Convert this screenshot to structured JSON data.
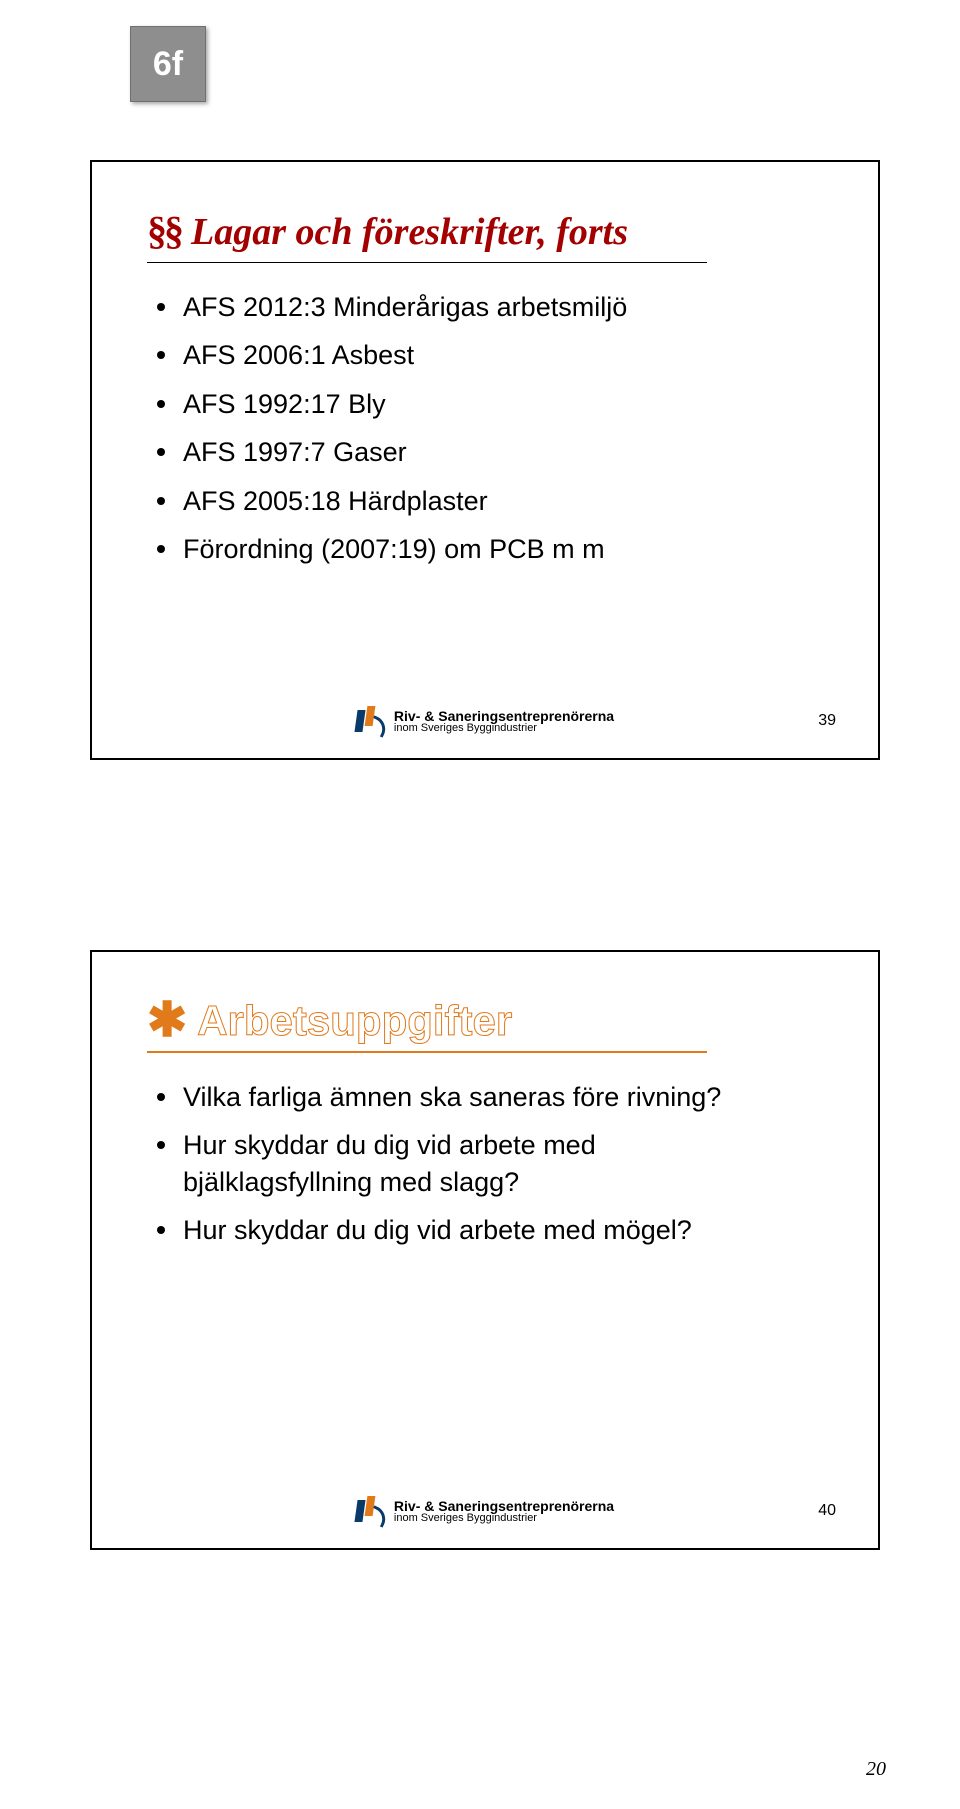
{
  "tab_badge": "6f",
  "colors": {
    "badge_bg": "#8e8e8e",
    "title1_color": "#a30000",
    "title2_stroke": "#e07a1b",
    "asterisk_color": "#e07a1b",
    "hr2_color": "#e07a1b",
    "logo_triangle": "#e07a1b",
    "logo_blue": "#0a3a6a",
    "text_color": "#000000",
    "page_bg": "#ffffff"
  },
  "slide1": {
    "prefix": "§§",
    "title": "Lagar och föreskrifter, forts",
    "bullets": [
      "AFS 2012:3 Minderårigas arbetsmiljö",
      "AFS 2006:1 Asbest",
      "AFS 1992:17 Bly",
      "AFS 1997:7 Gaser",
      "AFS 2005:18 Härdplaster",
      "Förordning (2007:19) om PCB m m"
    ],
    "logo_line1": "Riv- & Saneringsentreprenörerna",
    "logo_line2": "inom Sveriges Byggindustrier",
    "slide_number": "39"
  },
  "slide2": {
    "asterisk": "✱",
    "title": "Arbetsuppgifter",
    "bullets": [
      "Vilka farliga ämnen ska saneras före rivning?",
      "Hur skyddar du dig vid arbete med bjälklagsfyllning med slagg?",
      "Hur skyddar du dig vid arbete med mögel?"
    ],
    "logo_line1": "Riv- & Saneringsentreprenörerna",
    "logo_line2": "inom Sveriges Byggindustrier",
    "slide_number": "40"
  },
  "page_number": "20"
}
